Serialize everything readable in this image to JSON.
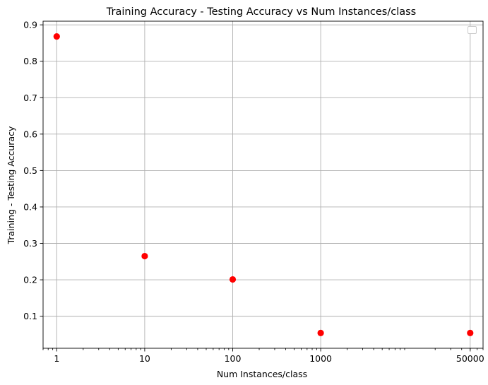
{
  "chart_data": {
    "type": "scatter",
    "title": "Training Accuracy - Testing Accuracy vs Num Instances/class",
    "xlabel": "Num Instances/class",
    "ylabel": "Training - Testing Accuracy",
    "x_scale": "log",
    "xlim": [
      0.7,
      70000
    ],
    "ylim": [
      0.012,
      0.91
    ],
    "x_ticks": [
      1,
      10,
      100,
      1000,
      50000
    ],
    "x_tick_labels": [
      "1",
      "10",
      "100",
      "1000",
      "50000"
    ],
    "y_ticks": [
      0.1,
      0.2,
      0.3,
      0.4,
      0.5,
      0.6,
      0.7,
      0.8,
      0.9
    ],
    "y_tick_labels": [
      "0.1",
      "0.2",
      "0.3",
      "0.4",
      "0.5",
      "0.6",
      "0.7",
      "0.8",
      "0.9"
    ],
    "grid": true,
    "legend": {
      "placement": "upper right",
      "entries": []
    },
    "series": [
      {
        "color": "#ff0000",
        "marker": "circle",
        "x": [
          1,
          10,
          100,
          1000,
          50000
        ],
        "y": [
          0.868,
          0.265,
          0.201,
          0.054,
          0.054
        ]
      }
    ]
  }
}
